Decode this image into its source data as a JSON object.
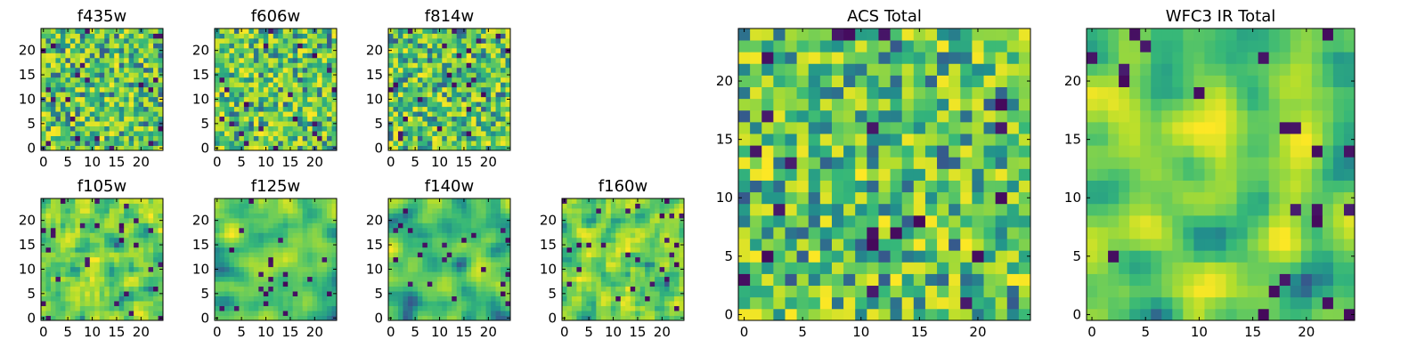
{
  "chart_data": [
    {
      "type": "heatmap",
      "title": "f435w",
      "xlim": [
        0,
        25
      ],
      "ylim": [
        0,
        25
      ],
      "xticks": [
        "0",
        "5",
        "10",
        "15",
        "20"
      ],
      "yticks": [
        "0",
        "5",
        "10",
        "15",
        "20"
      ],
      "grid_size": 25,
      "colormap": "viridis",
      "value_range": [
        0,
        1
      ],
      "seed": 11,
      "smooth": 0
    },
    {
      "type": "heatmap",
      "title": "f606w",
      "xlim": [
        0,
        25
      ],
      "ylim": [
        0,
        25
      ],
      "xticks": [
        "0",
        "5",
        "10",
        "15",
        "20"
      ],
      "yticks": [
        "0",
        "5",
        "10",
        "15",
        "20"
      ],
      "grid_size": 25,
      "colormap": "viridis",
      "value_range": [
        0,
        1
      ],
      "seed": 23,
      "smooth": 0
    },
    {
      "type": "heatmap",
      "title": "f814w",
      "xlim": [
        0,
        25
      ],
      "ylim": [
        0,
        25
      ],
      "xticks": [
        "0",
        "5",
        "10",
        "15",
        "20"
      ],
      "yticks": [
        "0",
        "5",
        "10",
        "15",
        "20"
      ],
      "grid_size": 25,
      "colormap": "viridis",
      "value_range": [
        0,
        1
      ],
      "seed": 37,
      "smooth": 0
    },
    {
      "type": "heatmap",
      "title": "f105w",
      "xlim": [
        0,
        25
      ],
      "ylim": [
        0,
        25
      ],
      "xticks": [
        "0",
        "5",
        "10",
        "15",
        "20"
      ],
      "yticks": [
        "0",
        "5",
        "10",
        "15",
        "20"
      ],
      "grid_size": 25,
      "colormap": "viridis",
      "value_range": [
        0,
        1
      ],
      "seed": 41,
      "smooth": 1
    },
    {
      "type": "heatmap",
      "title": "f125w",
      "xlim": [
        0,
        25
      ],
      "ylim": [
        0,
        25
      ],
      "xticks": [
        "0",
        "5",
        "10",
        "15",
        "20"
      ],
      "yticks": [
        "0",
        "5",
        "10",
        "15",
        "20"
      ],
      "grid_size": 25,
      "colormap": "viridis",
      "value_range": [
        0,
        1
      ],
      "seed": 53,
      "smooth": 2
    },
    {
      "type": "heatmap",
      "title": "f140w",
      "xlim": [
        0,
        25
      ],
      "ylim": [
        0,
        25
      ],
      "xticks": [
        "0",
        "5",
        "10",
        "15",
        "20"
      ],
      "yticks": [
        "0",
        "5",
        "10",
        "15",
        "20"
      ],
      "grid_size": 25,
      "colormap": "viridis",
      "value_range": [
        0,
        1
      ],
      "seed": 67,
      "smooth": 2
    },
    {
      "type": "heatmap",
      "title": "f160w",
      "xlim": [
        0,
        25
      ],
      "ylim": [
        0,
        25
      ],
      "xticks": [
        "0",
        "5",
        "10",
        "15",
        "20"
      ],
      "yticks": [
        "0",
        "5",
        "10",
        "15",
        "20"
      ],
      "grid_size": 25,
      "colormap": "viridis",
      "value_range": [
        0,
        1
      ],
      "seed": 71,
      "smooth": 1
    },
    {
      "type": "heatmap",
      "title": "ACS Total",
      "xlim": [
        0,
        25
      ],
      "ylim": [
        0,
        25
      ],
      "xticks": [
        "0",
        "5",
        "10",
        "15",
        "20"
      ],
      "yticks": [
        "0",
        "5",
        "10",
        "15",
        "20"
      ],
      "grid_size": 25,
      "colormap": "viridis",
      "value_range": [
        0,
        1
      ],
      "seed": 83,
      "smooth": 0
    },
    {
      "type": "heatmap",
      "title": "WFC3 IR Total",
      "xlim": [
        0,
        25
      ],
      "ylim": [
        0,
        25
      ],
      "xticks": [
        "0",
        "5",
        "10",
        "15",
        "20"
      ],
      "yticks": [
        "0",
        "5",
        "10",
        "15",
        "20"
      ],
      "grid_size": 25,
      "colormap": "viridis",
      "value_range": [
        0,
        1
      ],
      "seed": 97,
      "smooth": 2
    }
  ]
}
